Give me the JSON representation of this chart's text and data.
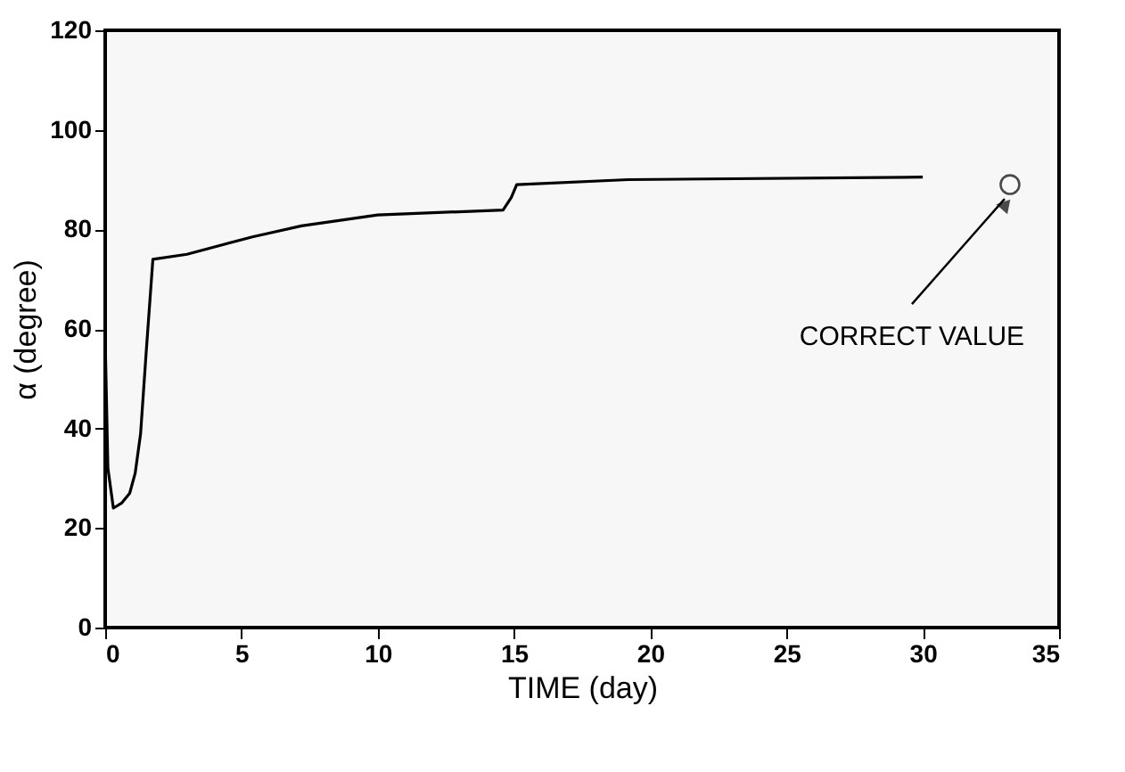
{
  "chart_data": {
    "type": "line",
    "xlabel": "TIME (day)",
    "ylabel": "α (degree)",
    "xlim": [
      0,
      35
    ],
    "xticks": [
      0,
      5,
      10,
      15,
      20,
      25,
      30,
      35
    ],
    "ylim": [
      0,
      120
    ],
    "yticks": [
      0,
      20,
      40,
      60,
      80,
      100,
      120
    ],
    "grid": false,
    "series": [
      {
        "color": "#000000",
        "x": [
          0,
          0.1,
          0.3,
          0.6,
          0.9,
          1.1,
          1.3,
          1.5,
          1.75,
          3,
          5.4,
          7.2,
          10,
          14.6,
          14.9,
          15.1,
          19.2,
          30
        ],
        "values": [
          58,
          32,
          24,
          25,
          27,
          31,
          39,
          55,
          74,
          75,
          78.5,
          80.7,
          82.9,
          83.9,
          86.4,
          89,
          90,
          90.5
        ]
      },
      {
        "color": "#000000",
        "type": "scatter",
        "marker": "circle",
        "x": [
          33.2
        ],
        "values": [
          89
        ]
      }
    ],
    "annotations": [
      {
        "text": "CORRECT VALUE",
        "x": 33.2,
        "y": 89
      }
    ]
  }
}
